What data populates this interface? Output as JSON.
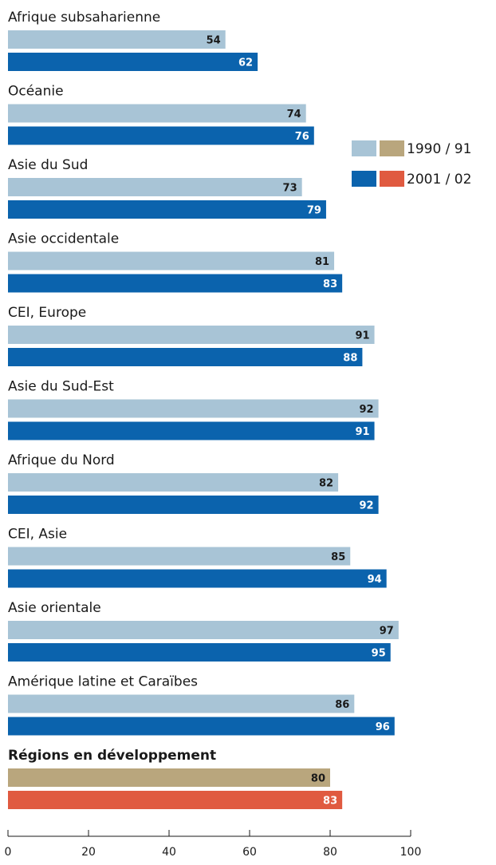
{
  "chart_data": {
    "type": "bar",
    "orientation": "horizontal",
    "categories": [
      "Afrique subsaharienne",
      "Océanie",
      "Asie du Sud",
      "Asie occidentale",
      "CEI, Europe",
      "Asie du Sud-Est",
      "Afrique du Nord",
      "CEI, Asie",
      "Asie orientale",
      "Amérique latine et Caraïbes",
      "Régions en développement"
    ],
    "series": [
      {
        "name": "1990 / 91",
        "values": [
          54,
          74,
          73,
          81,
          91,
          92,
          82,
          85,
          97,
          86,
          80
        ]
      },
      {
        "name": "2001 / 02",
        "values": [
          62,
          76,
          79,
          83,
          88,
          91,
          92,
          94,
          95,
          96,
          83
        ]
      }
    ],
    "xlim": [
      0,
      100
    ],
    "xticks": [
      0,
      20,
      40,
      60,
      80,
      100
    ],
    "legend_position": "right",
    "legend_swatches": [
      {
        "label": "1990 / 91",
        "colors": [
          "#a8c4d6",
          "#b9a67d"
        ]
      },
      {
        "label": "2001 / 02",
        "colors": [
          "#0b63ad",
          "#e05a40"
        ]
      }
    ],
    "colors": {
      "regional": [
        "#a8c4d6",
        "#0b63ad"
      ],
      "aggregate": [
        "#b9a67d",
        "#e05a40"
      ]
    },
    "emphasized_category": "Régions en développement",
    "title": "",
    "xlabel": "",
    "ylabel": ""
  }
}
